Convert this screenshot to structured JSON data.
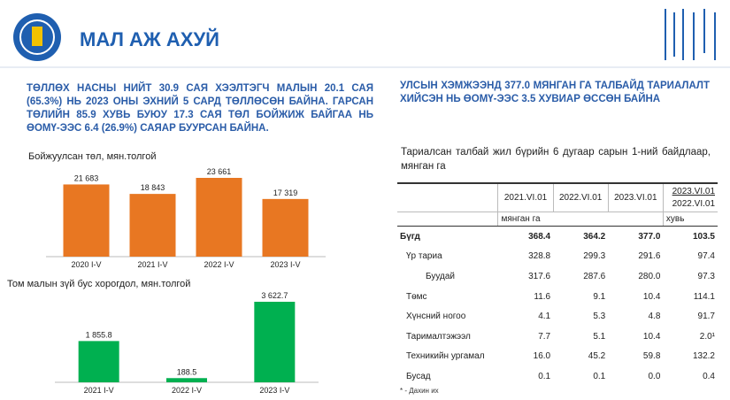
{
  "header": {
    "title": "МАЛ АЖ АХУЙ"
  },
  "left_text": "ТӨЛЛӨХ НАСНЫ НИЙТ 30.9 САЯ ХЭЭЛТЭГЧ МАЛЫН 20.1 САЯ (65.3%) НЬ 2023 ОНЫ ЭХНИЙ 5 САРД ТӨЛЛӨСӨН БАЙНА. ГАРСАН ТӨЛИЙН 85.9 ХУВЬ БУЮУ 17.3 САЯ ТӨЛ БОЙЖИЖ БАЙГАА НЬ ӨОМҮ-ЭЭС 6.4 (26.9%) САЯАР БУУРСАН БАЙНА.",
  "right_text": "УЛСЫН ХЭМЖЭЭНД 377.0 МЯНГАН ГА ТАЛБАЙД ТАРИАЛАЛТ ХИЙСЭН НЬ ӨОМҮ-ЭЭС 3.5 ХУВИАР ӨССӨН БАЙНА",
  "chart_data": [
    {
      "type": "bar",
      "title": "Бойжуулсан төл, мян.толгой",
      "categories": [
        "2020 I-V",
        "2021 I-V",
        "2022 I-V",
        "2023 I-V"
      ],
      "values": [
        21683,
        18843,
        23661,
        17319
      ],
      "value_labels": [
        "21 683",
        "18 843",
        "23 661",
        "17 319"
      ],
      "color": "#e87722"
    },
    {
      "type": "bar",
      "title": "Том малын зүй бус хорогдол, мян.толгой",
      "categories": [
        "2021 I-V",
        "2022 I-V",
        "2023 I-V"
      ],
      "values": [
        1855.8,
        188.5,
        3622.7
      ],
      "value_labels": [
        "1 855.8",
        "188.5",
        "3 622.7"
      ],
      "color": "#00b050"
    }
  ],
  "table": {
    "caption": "Тариалсан талбай жил бүрийн 6 дугаар сарын 1-ний байдлаар, мянган га",
    "columns": [
      "2021.VI.01",
      "2022.VI.01",
      "2023.VI.01"
    ],
    "ratio_header": [
      "2023.VI.01",
      "2022.VI.01"
    ],
    "units": [
      "мянган га",
      "хувь"
    ],
    "rows": [
      [
        "Бүгд",
        "368.4",
        "364.2",
        "377.0",
        "103.5"
      ],
      [
        "Үр тариа",
        "328.8",
        "299.3",
        "291.6",
        "97.4"
      ],
      [
        "Буудай",
        "317.6",
        "287.6",
        "280.0",
        "97.3"
      ],
      [
        "Төмс",
        "11.6",
        "9.1",
        "10.4",
        "114.1"
      ],
      [
        "Хүнсний ногоо",
        "4.1",
        "5.3",
        "4.8",
        "91.7"
      ],
      [
        "Тарималтэжээл",
        "7.7",
        "5.1",
        "10.4",
        "2.0¹"
      ],
      [
        "Техникийн ургамал",
        "16.0",
        "45.2",
        "59.8",
        "132.2"
      ],
      [
        "Бусад",
        "0.1",
        "0.1",
        "0.0",
        "0.4"
      ]
    ],
    "footnote": "* - Дахин их"
  }
}
